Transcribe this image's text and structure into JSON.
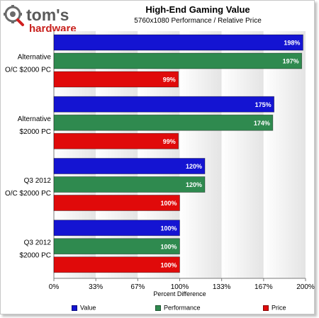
{
  "brand": {
    "name": "tom's",
    "sub": "hardware"
  },
  "chart_data": {
    "type": "bar",
    "orientation": "horizontal",
    "title": "High-End Gaming Value",
    "subtitle": "5760x1080 Performance / Relative Price",
    "xlabel": "Percent Difference",
    "ylabel": "",
    "xlim": [
      0,
      200
    ],
    "x_ticks": [
      "0%",
      "33%",
      "67%",
      "100%",
      "133%",
      "167%",
      "200%"
    ],
    "grid": "vertical bands",
    "legend_position": "bottom",
    "categories": [
      [
        "Alternative",
        "O/C $2000 PC"
      ],
      [
        "Alternative",
        "$2000 PC"
      ],
      [
        "Q3 2012",
        "O/C $2000 PC"
      ],
      [
        "Q3 2012",
        "$2000 PC"
      ]
    ],
    "series": [
      {
        "name": "Value",
        "color": "#1414d2",
        "values": [
          198,
          175,
          120,
          100
        ],
        "labels": [
          "198%",
          "175%",
          "120%",
          "100%"
        ]
      },
      {
        "name": "Performance",
        "color": "#2f8a4f",
        "values": [
          197,
          174,
          120,
          100
        ],
        "labels": [
          "197%",
          "174%",
          "120%",
          "100%"
        ]
      },
      {
        "name": "Price",
        "color": "#e00a0a",
        "values": [
          99,
          99,
          100,
          100
        ],
        "labels": [
          "99%",
          "99%",
          "100%",
          "100%"
        ]
      }
    ]
  }
}
